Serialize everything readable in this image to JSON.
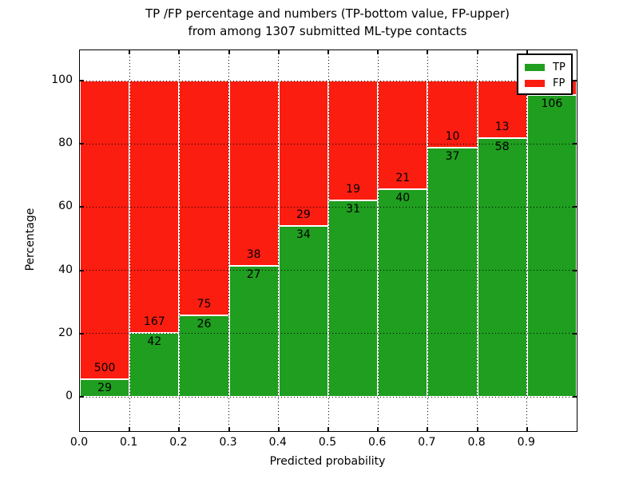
{
  "title": {
    "line1": "TP /FP percentage and numbers (TP-bottom value, FP-upper)",
    "line2": "from among 1307 submitted ML-type contacts"
  },
  "axes": {
    "xlabel": "Predicted probability",
    "ylabel": "Percentage",
    "x_tick_labels": [
      "0.0",
      "0.1",
      "0.2",
      "0.3",
      "0.4",
      "0.5",
      "0.6",
      "0.7",
      "0.8",
      "0.9"
    ],
    "y_tick_labels": [
      "0",
      "20",
      "40",
      "60",
      "80",
      "100"
    ]
  },
  "legend": {
    "items": [
      {
        "label": "TP",
        "color": "#1f9e1f"
      },
      {
        "label": "FP",
        "color": "#fb1d10"
      }
    ]
  },
  "colors": {
    "tp_green": "#1f9e1f",
    "fp_red": "#fb1d10",
    "grid": "#000000",
    "background": "#ffffff"
  },
  "chart_data": {
    "type": "bar",
    "stacked": true,
    "normalized_to_percent": true,
    "title": "TP /FP percentage and numbers (TP-bottom value, FP-upper) from among 1307 submitted ML-type contacts",
    "xlabel": "Predicted probability",
    "ylabel": "Percentage",
    "total_contacts": 1307,
    "categories": [
      "0.0-0.1",
      "0.1-0.2",
      "0.2-0.3",
      "0.3-0.4",
      "0.4-0.5",
      "0.5-0.6",
      "0.6-0.7",
      "0.7-0.8",
      "0.8-0.9",
      "0.9-1.0"
    ],
    "series": [
      {
        "name": "TP",
        "color": "#1f9e1f",
        "counts": [
          29,
          42,
          26,
          27,
          34,
          31,
          40,
          37,
          58,
          106
        ],
        "percent": [
          5.5,
          20.1,
          25.7,
          41.5,
          54.0,
          62.0,
          65.6,
          78.7,
          81.7,
          95.5
        ]
      },
      {
        "name": "FP",
        "color": "#fb1d10",
        "counts": [
          500,
          167,
          75,
          38,
          29,
          19,
          21,
          10,
          13,
          null
        ],
        "percent": [
          94.5,
          79.9,
          74.3,
          58.5,
          46.0,
          38.0,
          34.4,
          21.3,
          18.3,
          4.5
        ]
      }
    ],
    "tp_labels": [
      "29",
      "42",
      "26",
      "27",
      "34",
      "31",
      "40",
      "37",
      "58",
      "106"
    ],
    "fp_labels": [
      "500",
      "167",
      "75",
      "38",
      "29",
      "19",
      "21",
      "10",
      "13",
      ""
    ],
    "y_ticks": [
      0,
      20,
      40,
      60,
      80,
      100
    ],
    "x_ticks": [
      0.0,
      0.1,
      0.2,
      0.3,
      0.4,
      0.5,
      0.6,
      0.7,
      0.8,
      0.9
    ],
    "ylim": [
      -11,
      110
    ],
    "xlim": [
      0,
      1
    ],
    "grid": "dotted",
    "legend_position": "upper right"
  }
}
